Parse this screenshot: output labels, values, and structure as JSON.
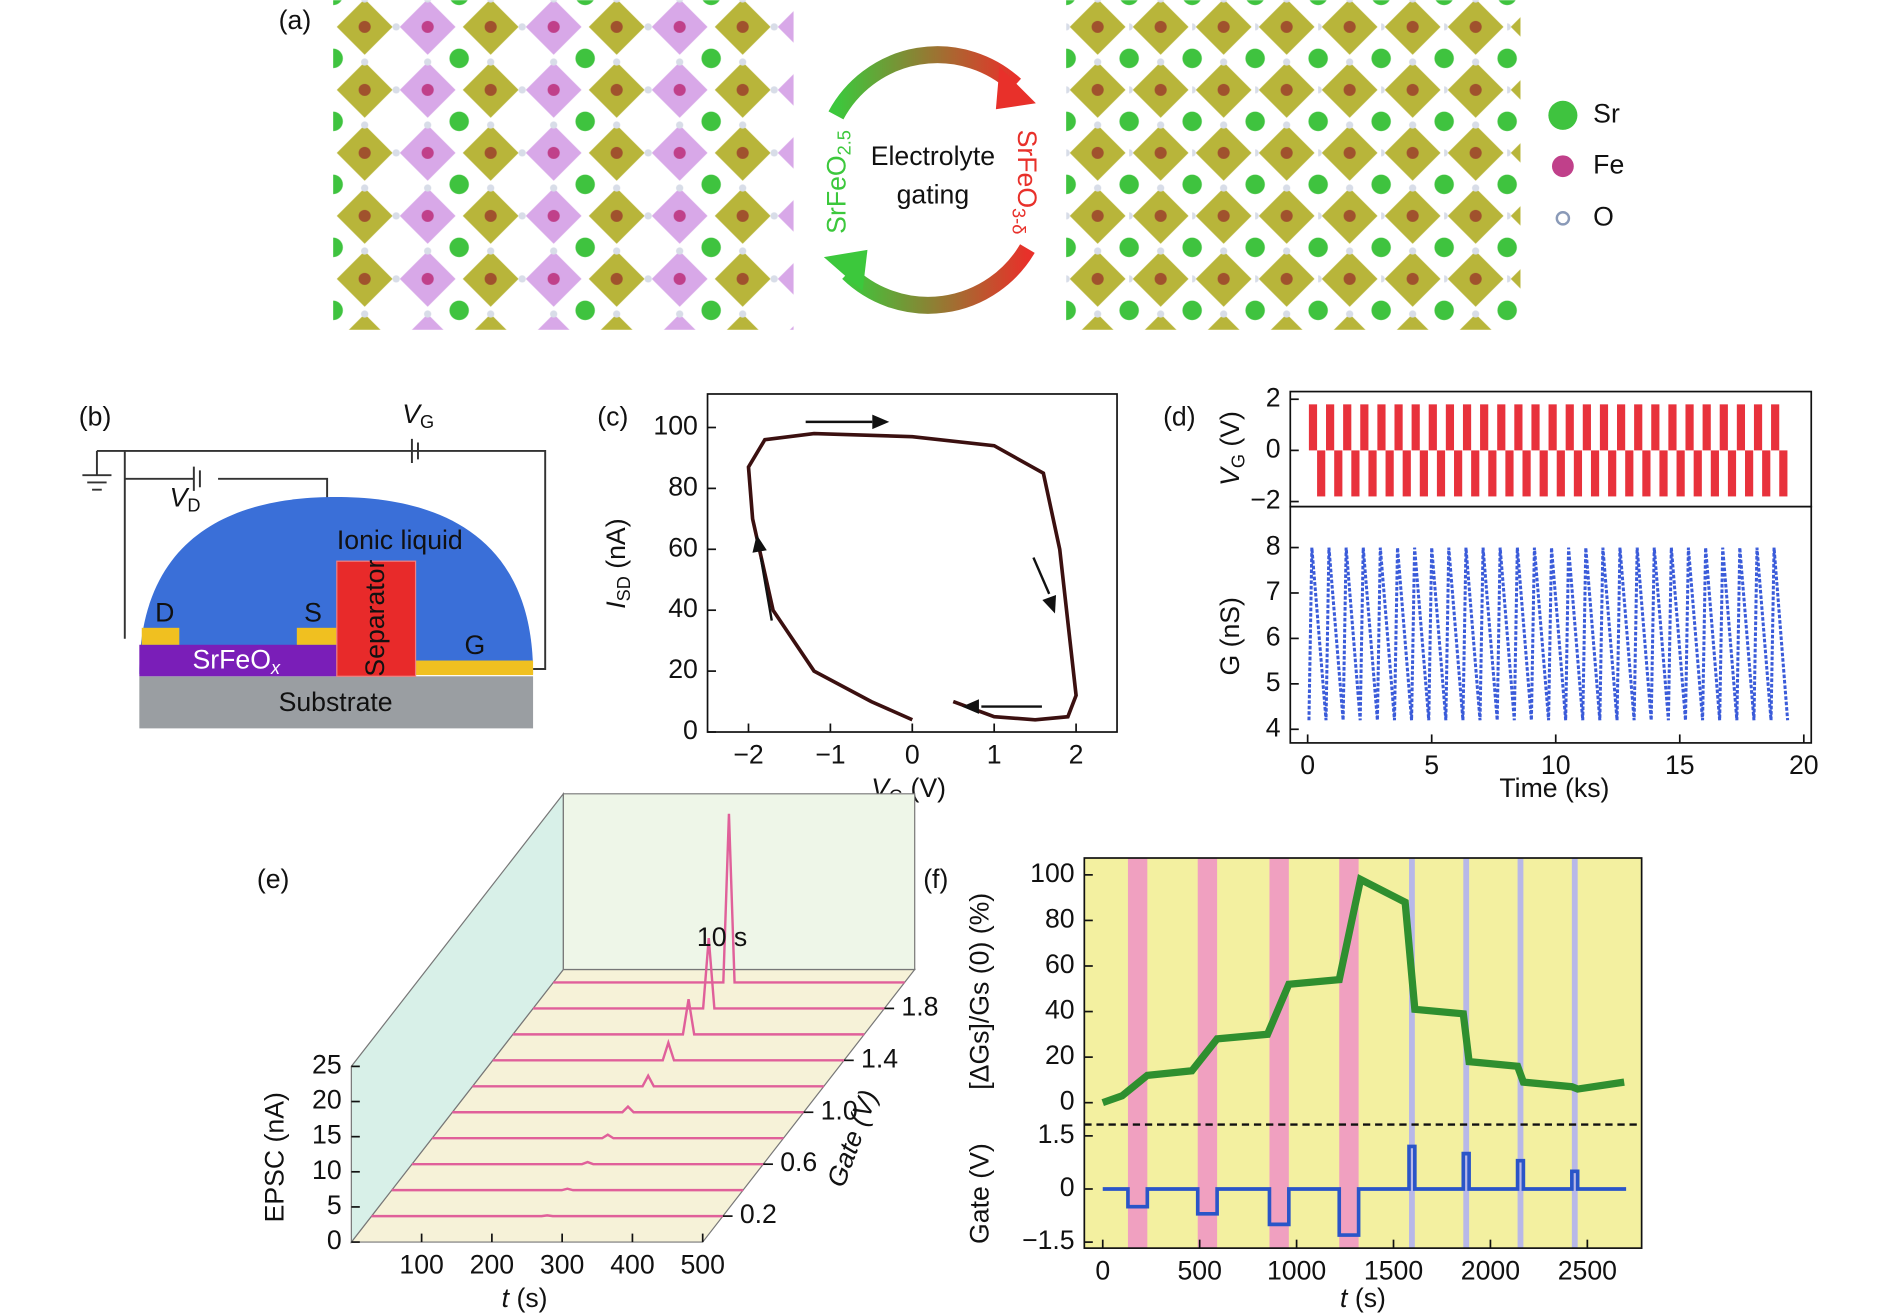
{
  "figure": {
    "a": {
      "label": "(a)",
      "gating": [
        "Electrolyte",
        "gating"
      ],
      "left_phase": [
        "SrFeO",
        "2.5"
      ],
      "right_phase": [
        "SrFeO",
        "3-δ"
      ],
      "legend": [
        "Sr",
        "Fe",
        "O"
      ]
    },
    "b": {
      "label": "(b)",
      "vg": [
        "V",
        "G"
      ],
      "vd": [
        "V",
        "D"
      ],
      "liquid": "Ionic liquid",
      "separator": "Separator",
      "drain": "D",
      "source": "S",
      "gate": "G",
      "film": [
        "SrFeO",
        "x"
      ],
      "substrate": "Substrate"
    }
  },
  "chart_data": [
    {
      "type": "hysteresis",
      "panel": "(c)",
      "x_label": [
        "V",
        "G",
        " (V)"
      ],
      "y_label": [
        "I",
        "SD",
        " (nA)"
      ],
      "x": [
        0,
        -0.5,
        -1.2,
        -1.7,
        -1.95,
        -2,
        -1.8,
        -1.2,
        0,
        1,
        1.6,
        1.8,
        2,
        1.9,
        1.5,
        1,
        0.5
      ],
      "values": [
        4,
        10,
        20,
        40,
        70,
        87,
        96,
        98,
        97,
        94,
        85,
        60,
        12,
        5,
        4,
        5,
        10
      ],
      "color": "#3b1010",
      "xlim": [
        -2.5,
        2.5
      ],
      "ylim": [
        0,
        111
      ],
      "xticks": [
        {
          "value": -2,
          "label": "−2"
        },
        {
          "value": -1,
          "label": "−1"
        },
        0,
        1,
        2
      ],
      "yticks": [
        0,
        20,
        40,
        60,
        80,
        100
      ]
    },
    {
      "type": "pulse-train",
      "panel": "(d)",
      "x_label": "Time (ks)",
      "xlim": [
        -0.7,
        20.3
      ],
      "xticks": [
        0,
        5,
        10,
        15,
        20
      ],
      "top": {
        "y_label": [
          "V",
          "G",
          " (V)"
        ],
        "ylim": [
          -2.2,
          2.3
        ],
        "yticks": [
          {
            "value": -2,
            "label": "−2"
          },
          0,
          2
        ],
        "pulses": {
          "x": [
            0.05,
            0.74,
            1.43,
            2.12,
            2.81,
            3.5,
            4.19,
            4.88,
            5.57,
            6.26,
            6.95,
            7.64,
            8.33,
            9.02,
            9.71,
            10.4,
            11.09,
            11.78,
            12.47,
            13.16,
            13.85,
            14.54,
            15.23,
            15.92,
            16.61,
            17.3,
            17.99,
            18.68
          ],
          "width": 0.33,
          "high": 1.8,
          "low": -1.8,
          "color": "#e8323c"
        }
      },
      "bottom": {
        "y_label": "G (nS)",
        "ylim": [
          3.7,
          8.9
        ],
        "yticks": [
          4,
          5,
          6,
          7,
          8
        ],
        "color": "#3a5bd9",
        "x": [
          0.05,
          0.17,
          0.74,
          0.86,
          1.43,
          1.55,
          2.12,
          2.24,
          2.81,
          2.93,
          3.5,
          3.62,
          4.19,
          4.31,
          4.88,
          5,
          5.57,
          5.69,
          6.26,
          6.38,
          6.95,
          7.07,
          7.64,
          7.76,
          8.33,
          8.45,
          9.02,
          9.14,
          9.71,
          9.83,
          10.4,
          10.52,
          11.09,
          11.21,
          11.78,
          11.9,
          12.47,
          12.59,
          13.16,
          13.28,
          13.85,
          13.97,
          14.54,
          14.66,
          15.23,
          15.35,
          15.92,
          16.04,
          16.61,
          16.73,
          17.3,
          17.42,
          17.99,
          18.11,
          18.68,
          18.8,
          19.35
        ],
        "values": [
          4.2,
          8.0,
          4.2,
          8.0,
          4.2,
          8.0,
          4.2,
          8.0,
          4.2,
          8.0,
          4.2,
          8.0,
          4.2,
          8.0,
          4.2,
          8.0,
          4.2,
          8.0,
          4.2,
          8.0,
          4.2,
          8.0,
          4.2,
          8.0,
          4.2,
          8.0,
          4.2,
          8.0,
          4.2,
          8.0,
          4.2,
          8.0,
          4.2,
          8.0,
          4.2,
          8.0,
          4.2,
          8.0,
          4.2,
          8.0,
          4.2,
          8.0,
          4.2,
          8.0,
          4.2,
          8.0,
          4.2,
          8.0,
          4.2,
          8.0,
          4.2,
          8.0,
          4.2,
          8.0,
          4.2,
          8.0,
          4.2
        ]
      }
    },
    {
      "type": "waterfall",
      "panel": "(e)",
      "x_label": [
        "t",
        " (s)"
      ],
      "y_label": "EPSC (nA)",
      "z_label": "Gate (V)",
      "inset": "10 s",
      "xlim": [
        0,
        500
      ],
      "xticks": [
        100,
        200,
        300,
        400,
        500
      ],
      "ylim": [
        0,
        25
      ],
      "yticks": [
        0,
        5,
        10,
        15,
        20,
        25
      ],
      "zlim": [
        0,
        2.1
      ],
      "zticks": [
        0.2,
        0.6,
        {
          "value": 1,
          "label": "1.0"
        },
        1.4,
        1.8
      ],
      "series": {
        "gate": [
          0.2,
          0.4,
          0.6,
          0.8,
          1.0,
          1.2,
          1.4,
          1.6,
          1.8,
          2.0
        ],
        "peak": [
          0.1,
          0.2,
          0.3,
          0.5,
          0.8,
          1.5,
          2.5,
          5,
          10,
          24
        ]
      },
      "spike_t": 250,
      "color": "#e0609a"
    },
    {
      "type": "step-line",
      "panel": "(f)",
      "x_label": [
        "t",
        " (s)"
      ],
      "xlim": [
        -95,
        2780
      ],
      "xticks": [
        0,
        500,
        1000,
        1500,
        2000,
        2500
      ],
      "top": {
        "y_label": "[ΔGs]/Gs (0) (%)",
        "ylim": [
          -9.6,
          107.4
        ],
        "yticks": [
          0,
          20,
          40,
          60,
          80,
          100
        ],
        "color": "#2f8f2f",
        "x": [
          0,
          100,
          230,
          460,
          590,
          850,
          960,
          1220,
          1330,
          1560,
          1610,
          1860,
          1890,
          2140,
          2170,
          2420,
          2450,
          2690
        ],
        "values": [
          0,
          3,
          12,
          14,
          28,
          30,
          52,
          54,
          98,
          88,
          41,
          39,
          18,
          16,
          9,
          7,
          6,
          9
        ]
      },
      "bottom": {
        "y_label": "Gate (V)",
        "ylim": [
          -1.67,
          1.82
        ],
        "yticks": [
          {
            "value": -1.5,
            "label": "−1.5"
          },
          0,
          1.5
        ],
        "color": "#2a55c8",
        "x": [
          0,
          130,
          130,
          230,
          230,
          490,
          490,
          590,
          590,
          860,
          860,
          960,
          960,
          1220,
          1220,
          1320,
          1320,
          1580,
          1580,
          1610,
          1610,
          1860,
          1860,
          1890,
          1890,
          2140,
          2140,
          2170,
          2170,
          2420,
          2420,
          2450,
          2450,
          2700
        ],
        "values": [
          0,
          0,
          -0.5,
          -0.5,
          0,
          0,
          -0.7,
          -0.7,
          0,
          0,
          -1.0,
          -1.0,
          0,
          0,
          -1.3,
          -1.3,
          0,
          0,
          1.2,
          1.2,
          0,
          0,
          1.0,
          1.0,
          0,
          0,
          0.8,
          0.8,
          0,
          0,
          0.5,
          0.5,
          0,
          0
        ]
      },
      "background": "#f3f0a0",
      "potentiation": {
        "color": "#f0a0c0",
        "bands": [
          [
            130,
            230
          ],
          [
            490,
            590
          ],
          [
            860,
            960
          ],
          [
            1220,
            1320
          ]
        ]
      },
      "depression": {
        "color": "#b8b8e8",
        "bands": [
          [
            1580,
            1610
          ],
          [
            1860,
            1890
          ],
          [
            2140,
            2170
          ],
          [
            2420,
            2450
          ]
        ]
      }
    }
  ]
}
